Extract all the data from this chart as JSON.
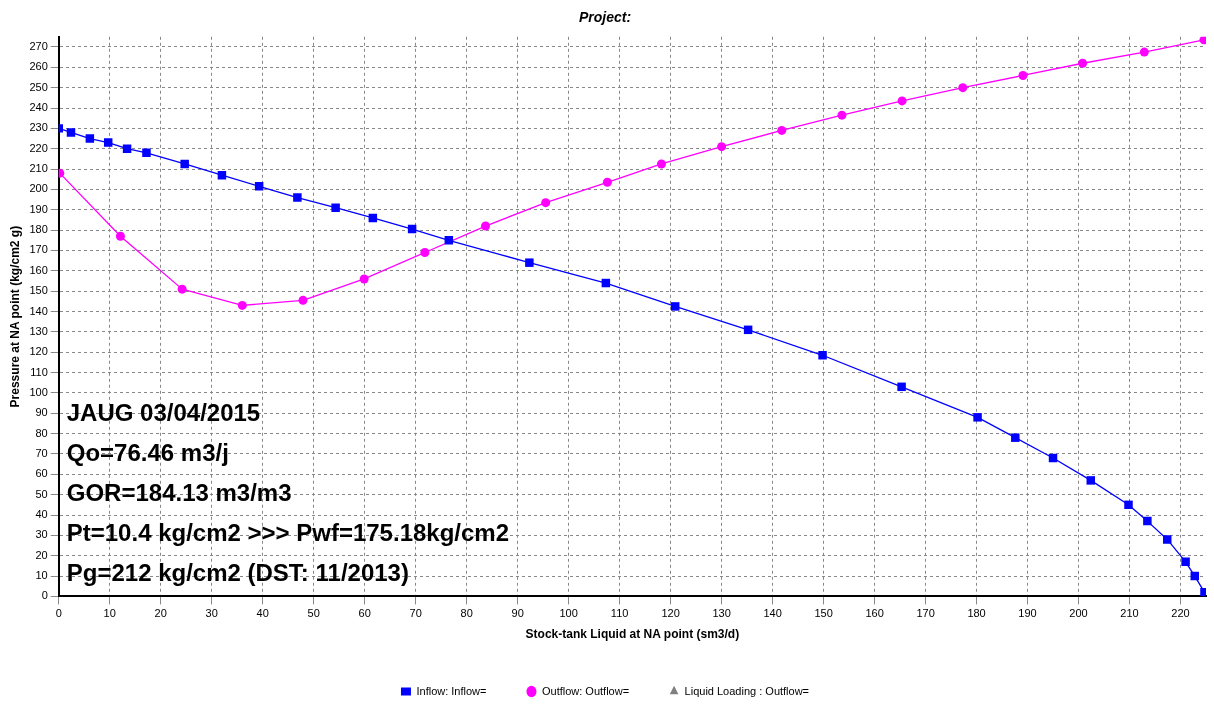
{
  "chart_data": {
    "type": "line",
    "title": "Project:",
    "xlabel": "Stock-tank Liquid at NA point (sm3/d)",
    "ylabel": "Pressure at NA point (kg/cm2 g)",
    "xlim": [
      0,
      225
    ],
    "xticks": [
      0,
      10,
      20,
      30,
      40,
      50,
      60,
      70,
      80,
      90,
      100,
      110,
      120,
      130,
      140,
      150,
      160,
      170,
      180,
      190,
      200,
      210,
      220
    ],
    "ylim": [
      0,
      275
    ],
    "yticks": [
      0,
      10,
      20,
      30,
      40,
      50,
      60,
      70,
      80,
      90,
      100,
      110,
      120,
      130,
      140,
      150,
      160,
      170,
      180,
      190,
      200,
      210,
      220,
      230,
      240,
      250,
      260,
      270
    ],
    "grid": true,
    "legend": "bottom",
    "line_style": "solid",
    "series": [
      {
        "name": "Inflow: Inflow=",
        "color": "#0000ff",
        "marker": "square",
        "x": [
          0,
          2.4,
          6.1,
          9.7,
          13.4,
          17.2,
          24.7,
          32,
          39.3,
          46.8,
          54.3,
          61.6,
          69.3,
          76.5,
          92.3,
          107.3,
          120.9,
          135.2,
          149.8,
          165.3,
          180.2,
          187.6,
          195,
          202.4,
          209.8,
          213.5,
          217.4,
          221,
          222.8,
          224.7
        ],
        "values": [
          230,
          228,
          225,
          223,
          220,
          218,
          212.5,
          207,
          201.5,
          196,
          191,
          186,
          180.5,
          175,
          164,
          154,
          142.5,
          131,
          118.5,
          103,
          88,
          78,
          68,
          57,
          45,
          37,
          28,
          17,
          10,
          2
        ]
      },
      {
        "name": "Outflow: Outflow=",
        "color": "#ff00ff",
        "marker": "circle",
        "x": [
          0.2,
          12.1,
          24.2,
          36,
          47.9,
          59.9,
          71.8,
          83.7,
          95.5,
          107.6,
          118.2,
          130,
          141.8,
          153.6,
          165.4,
          177.3,
          189.1,
          200.8,
          212.9,
          224.6
        ],
        "values": [
          208,
          177,
          151,
          143,
          145.5,
          156,
          169,
          182,
          193.5,
          203.5,
          212.5,
          221,
          229,
          236.5,
          243.5,
          250,
          256,
          262,
          267.5,
          273.5
        ]
      },
      {
        "name": "Liquid Loading : Outflow=",
        "color": "#808080",
        "marker": "triangle"
      }
    ],
    "annotations": [
      "JAUG 03/04/2015",
      "Qo=76.46 m3/j",
      "GOR=184.13 m3/m3",
      "Pt=10.4 kg/cm2 >>> Pwf=175.18kg/cm2",
      "Pg=212 kg/cm2 (DST: 11/2013)"
    ]
  }
}
